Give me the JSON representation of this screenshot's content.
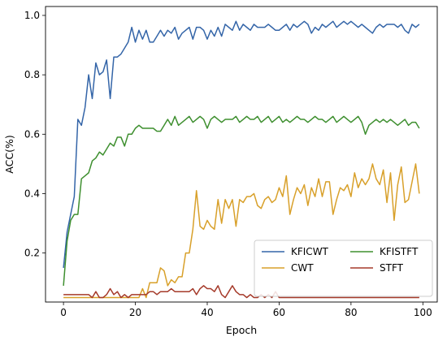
{
  "chart_data": {
    "type": "line",
    "xlabel": "Epoch",
    "ylabel": "ACC(%)",
    "xlim": [
      -5,
      104
    ],
    "ylim": [
      0.035,
      1.03
    ],
    "xticks": [
      0,
      20,
      40,
      60,
      80,
      100
    ],
    "yticks": [
      0.2,
      0.4,
      0.6,
      0.8,
      1.0
    ],
    "xtick_labels": [
      "0",
      "20",
      "40",
      "60",
      "80",
      "100"
    ],
    "ytick_labels": [
      "0.2",
      "0.4",
      "0.6",
      "0.8",
      "1.0"
    ],
    "grid": false,
    "legend_position": "lower-right",
    "series": [
      {
        "name": "KFICWT",
        "color": "#3465a8",
        "values": [
          0.15,
          0.27,
          0.33,
          0.39,
          0.65,
          0.63,
          0.69,
          0.8,
          0.72,
          0.84,
          0.8,
          0.81,
          0.85,
          0.72,
          0.86,
          0.86,
          0.87,
          0.89,
          0.91,
          0.96,
          0.91,
          0.95,
          0.92,
          0.95,
          0.91,
          0.91,
          0.93,
          0.95,
          0.93,
          0.95,
          0.94,
          0.96,
          0.92,
          0.94,
          0.95,
          0.96,
          0.92,
          0.96,
          0.96,
          0.95,
          0.92,
          0.95,
          0.93,
          0.96,
          0.93,
          0.97,
          0.96,
          0.95,
          0.98,
          0.95,
          0.97,
          0.96,
          0.95,
          0.97,
          0.96,
          0.96,
          0.96,
          0.97,
          0.96,
          0.95,
          0.95,
          0.96,
          0.97,
          0.95,
          0.97,
          0.96,
          0.97,
          0.98,
          0.97,
          0.94,
          0.96,
          0.95,
          0.97,
          0.96,
          0.97,
          0.98,
          0.96,
          0.97,
          0.98,
          0.97,
          0.98,
          0.97,
          0.96,
          0.97,
          0.96,
          0.95,
          0.94,
          0.96,
          0.97,
          0.96,
          0.97,
          0.97,
          0.97,
          0.96,
          0.97,
          0.95,
          0.94,
          0.97,
          0.96,
          0.97
        ]
      },
      {
        "name": "CWT",
        "color": "#d8a02a",
        "values": [
          0.05,
          0.05,
          0.05,
          0.05,
          0.05,
          0.05,
          0.05,
          0.05,
          0.05,
          0.05,
          0.05,
          0.05,
          0.05,
          0.05,
          0.05,
          0.05,
          0.05,
          0.05,
          0.05,
          0.05,
          0.05,
          0.05,
          0.08,
          0.05,
          0.1,
          0.1,
          0.1,
          0.15,
          0.14,
          0.09,
          0.11,
          0.1,
          0.12,
          0.12,
          0.2,
          0.2,
          0.28,
          0.41,
          0.29,
          0.28,
          0.31,
          0.29,
          0.28,
          0.38,
          0.3,
          0.38,
          0.35,
          0.38,
          0.29,
          0.38,
          0.37,
          0.39,
          0.39,
          0.4,
          0.36,
          0.35,
          0.38,
          0.39,
          0.37,
          0.38,
          0.42,
          0.39,
          0.46,
          0.33,
          0.38,
          0.42,
          0.4,
          0.43,
          0.36,
          0.42,
          0.39,
          0.45,
          0.39,
          0.44,
          0.44,
          0.33,
          0.38,
          0.42,
          0.41,
          0.43,
          0.39,
          0.47,
          0.42,
          0.45,
          0.43,
          0.45,
          0.5,
          0.45,
          0.43,
          0.48,
          0.37,
          0.47,
          0.31,
          0.43,
          0.49,
          0.37,
          0.38,
          0.44,
          0.5,
          0.4
        ]
      },
      {
        "name": "KFISTFT",
        "color": "#3e8f2f",
        "values": [
          0.09,
          0.24,
          0.31,
          0.33,
          0.33,
          0.45,
          0.46,
          0.47,
          0.51,
          0.52,
          0.54,
          0.53,
          0.55,
          0.57,
          0.56,
          0.59,
          0.59,
          0.56,
          0.6,
          0.6,
          0.62,
          0.63,
          0.62,
          0.62,
          0.62,
          0.62,
          0.61,
          0.61,
          0.63,
          0.65,
          0.63,
          0.66,
          0.63,
          0.64,
          0.65,
          0.66,
          0.64,
          0.65,
          0.66,
          0.65,
          0.62,
          0.65,
          0.66,
          0.65,
          0.64,
          0.65,
          0.65,
          0.65,
          0.66,
          0.64,
          0.65,
          0.66,
          0.65,
          0.65,
          0.66,
          0.64,
          0.65,
          0.66,
          0.64,
          0.65,
          0.66,
          0.64,
          0.65,
          0.64,
          0.65,
          0.66,
          0.65,
          0.65,
          0.64,
          0.65,
          0.66,
          0.65,
          0.65,
          0.64,
          0.65,
          0.66,
          0.64,
          0.65,
          0.66,
          0.65,
          0.64,
          0.65,
          0.66,
          0.64,
          0.6,
          0.63,
          0.64,
          0.65,
          0.64,
          0.65,
          0.64,
          0.65,
          0.64,
          0.63,
          0.64,
          0.65,
          0.63,
          0.64,
          0.64,
          0.62
        ]
      },
      {
        "name": "STFT",
        "color": "#a53a2a",
        "values": [
          0.06,
          0.06,
          0.06,
          0.06,
          0.06,
          0.06,
          0.06,
          0.06,
          0.05,
          0.07,
          0.05,
          0.05,
          0.06,
          0.08,
          0.06,
          0.07,
          0.05,
          0.06,
          0.05,
          0.06,
          0.06,
          0.06,
          0.06,
          0.06,
          0.07,
          0.07,
          0.06,
          0.07,
          0.07,
          0.07,
          0.08,
          0.07,
          0.07,
          0.07,
          0.07,
          0.07,
          0.08,
          0.06,
          0.08,
          0.09,
          0.08,
          0.08,
          0.07,
          0.09,
          0.06,
          0.05,
          0.07,
          0.09,
          0.07,
          0.06,
          0.06,
          0.05,
          0.06,
          0.05,
          0.05,
          0.06,
          0.05,
          0.06,
          0.05,
          0.07,
          0.05,
          0.05,
          0.05,
          0.05,
          0.05,
          0.05,
          0.05,
          0.05,
          0.05,
          0.05,
          0.05,
          0.05,
          0.05,
          0.05,
          0.05,
          0.05,
          0.05,
          0.05,
          0.05,
          0.05,
          0.05,
          0.05,
          0.05,
          0.05,
          0.05,
          0.05,
          0.05,
          0.05,
          0.05,
          0.05,
          0.05,
          0.05,
          0.05,
          0.05,
          0.05,
          0.05,
          0.05,
          0.05,
          0.05,
          0.05
        ]
      }
    ],
    "legend_order": [
      "KFICWT",
      "CWT",
      "KFISTFT",
      "STFT"
    ]
  }
}
